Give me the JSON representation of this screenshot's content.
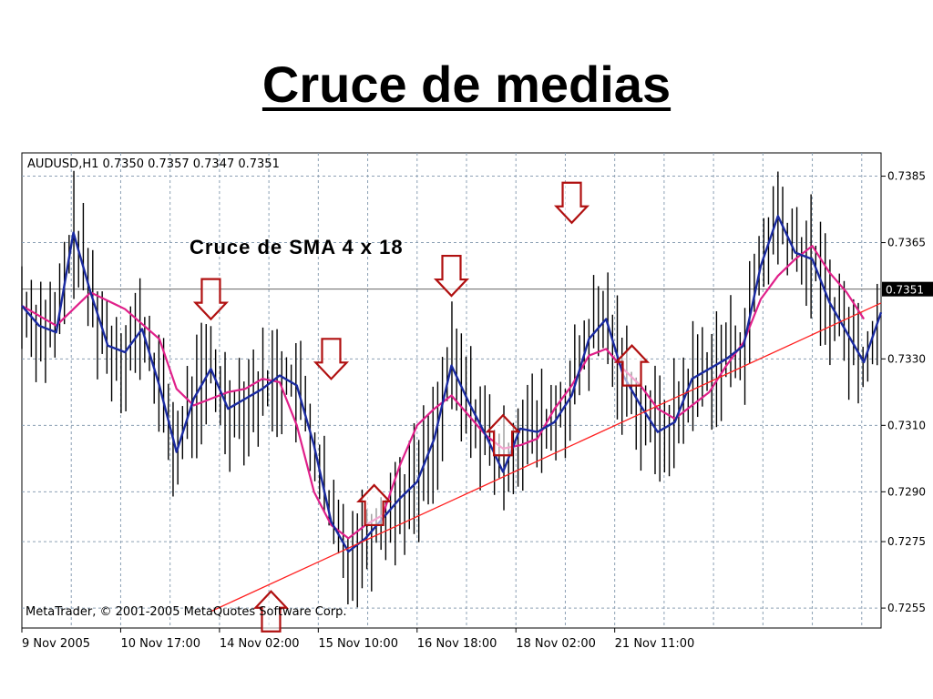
{
  "slide": {
    "title": "Cruce de medias"
  },
  "chart_data": {
    "type": "line",
    "symbol_header": "AUDUSD,H1  0.7350 0.7357 0.7347 0.7351",
    "annotation": "Cruce de SMA 4 x 18",
    "copyright": "MetaTrader, © 2001-2005 MetaQuotes Software Corp.",
    "current_price_label": "0.7351",
    "current_price": 0.7351,
    "ylim": [
      0.7249,
      0.7392
    ],
    "y_ticks": [
      "0.7385",
      "0.7365",
      "0.7330",
      "0.7310",
      "0.7290",
      "0.7275",
      "0.7255"
    ],
    "x_ticks": [
      "9 Nov 2005",
      "10 Nov 17:00",
      "14 Nov 02:00",
      "15 Nov 10:00",
      "16 Nov 18:00",
      "18 Nov 02:00",
      "21 Nov 11:00"
    ],
    "x_range": [
      0,
      100
    ],
    "x_tick_positions": [
      0,
      11.5,
      23,
      34.5,
      46,
      57.5,
      69
    ],
    "grid": true,
    "colors": {
      "background": "#ffffff",
      "grid": "#8ca0b4",
      "bars": "#000000",
      "sma_fast": "#1a2aa0",
      "sma_slow": "#e0208a",
      "trendline": "#ff2020",
      "arrows": "#b01010"
    },
    "trendline": {
      "x": [
        22,
        101
      ],
      "y": [
        0.7254,
        0.7348
      ]
    },
    "series": [
      {
        "role": "sma_fast",
        "x": [
          0,
          2,
          4,
          6,
          8,
          10,
          12,
          14,
          16,
          18,
          20,
          22,
          24,
          26,
          28,
          30,
          32,
          34,
          36,
          38,
          40,
          42,
          44,
          46,
          48,
          50,
          52,
          54,
          56,
          58,
          60,
          62,
          64,
          66,
          68,
          70,
          72,
          74,
          76,
          78,
          80,
          82,
          84,
          86,
          88,
          90,
          92,
          94,
          96,
          98,
          100
        ],
        "y": [
          0.7346,
          0.734,
          0.7338,
          0.7368,
          0.735,
          0.7334,
          0.7332,
          0.7339,
          0.7322,
          0.7302,
          0.7318,
          0.7327,
          0.7315,
          0.7318,
          0.7321,
          0.7325,
          0.7322,
          0.7304,
          0.7281,
          0.7272,
          0.7276,
          0.7282,
          0.7288,
          0.7293,
          0.7306,
          0.7328,
          0.7317,
          0.7307,
          0.7296,
          0.7309,
          0.7308,
          0.7311,
          0.7319,
          0.7336,
          0.7342,
          0.7325,
          0.7316,
          0.7308,
          0.7311,
          0.7324,
          0.7327,
          0.733,
          0.7334,
          0.7358,
          0.7373,
          0.7362,
          0.736,
          0.7347,
          0.7338,
          0.7329,
          0.7344
        ]
      },
      {
        "role": "sma_slow",
        "x": [
          0,
          4,
          8,
          12,
          16,
          18,
          20,
          22,
          24,
          26,
          28,
          30,
          32,
          34,
          36,
          38,
          40,
          42,
          44,
          46,
          48,
          50,
          52,
          54,
          56,
          58,
          60,
          62,
          64,
          66,
          68,
          70,
          72,
          74,
          76,
          78,
          80,
          82,
          84,
          86,
          88,
          90,
          92,
          94,
          96,
          98
        ],
        "y": [
          0.7346,
          0.734,
          0.735,
          0.7345,
          0.7336,
          0.7321,
          0.7316,
          0.7318,
          0.732,
          0.7321,
          0.7324,
          0.7323,
          0.731,
          0.729,
          0.728,
          0.7276,
          0.728,
          0.7283,
          0.7298,
          0.731,
          0.7315,
          0.7319,
          0.7313,
          0.7307,
          0.7303,
          0.7304,
          0.7306,
          0.7315,
          0.7322,
          0.7331,
          0.7333,
          0.7327,
          0.7322,
          0.7315,
          0.7312,
          0.7316,
          0.732,
          0.7328,
          0.7335,
          0.7348,
          0.7355,
          0.736,
          0.7364,
          0.7356,
          0.735,
          0.7342
        ]
      }
    ],
    "signals": [
      {
        "direction": "down",
        "x": 22,
        "y": 0.7348
      },
      {
        "direction": "down",
        "x": 36,
        "y": 0.733
      },
      {
        "direction": "up",
        "x": 41,
        "y": 0.7286
      },
      {
        "direction": "up",
        "x": 29,
        "y": 0.7254
      },
      {
        "direction": "down",
        "x": 50,
        "y": 0.7355
      },
      {
        "direction": "up",
        "x": 56,
        "y": 0.7307
      },
      {
        "direction": "down",
        "x": 64,
        "y": 0.7377
      },
      {
        "direction": "up",
        "x": 71,
        "y": 0.7328
      }
    ]
  }
}
